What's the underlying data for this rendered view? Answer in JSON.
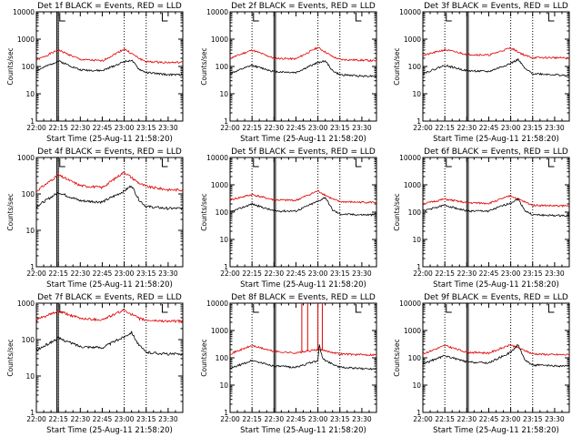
{
  "colors": {
    "events": "#000000",
    "lld": "#e00000",
    "axes": "#000000"
  },
  "chart_data": [
    {
      "type": "line",
      "title": "Det 1f BLACK = Events, RED = LLD",
      "xlabel": "Start Time (25-Aug-11 21:58:20)",
      "ylabel": "Counts/sec",
      "yscale": "log",
      "ylim": [
        1,
        10000
      ],
      "yticks": [
        "1",
        "10",
        "100",
        "1000",
        "10000"
      ],
      "xticks": [
        "22:00",
        "22:15",
        "22:30",
        "22:45",
        "23:00",
        "23:15",
        "23:30"
      ],
      "x_units": "minutes after 22:00",
      "dotted_x": [
        15,
        60,
        75
      ],
      "solid_x": [
        14,
        15
      ],
      "flag_x": [
        16,
        86
      ],
      "series": [
        {
          "name": "LLD",
          "x": [
            0,
            15,
            30,
            45,
            60,
            70,
            75,
            90,
            100
          ],
          "y": [
            170,
            400,
            180,
            160,
            440,
            200,
            150,
            140,
            140
          ]
        },
        {
          "name": "Events",
          "x": [
            0,
            15,
            30,
            45,
            60,
            65,
            70,
            75,
            90,
            100
          ],
          "y": [
            70,
            160,
            75,
            70,
            150,
            170,
            80,
            60,
            50,
            50
          ]
        }
      ]
    },
    {
      "type": "line",
      "title": "Det 2f BLACK = Events, RED = LLD",
      "xlabel": "Start Time (25-Aug-11 21:58:20)",
      "ylabel": "Counts/sec",
      "yscale": "log",
      "ylim": [
        1,
        10000
      ],
      "yticks": [
        "1",
        "10",
        "100",
        "1000",
        "10000"
      ],
      "xticks": [
        "22:00",
        "22:15",
        "22:30",
        "22:45",
        "23:00",
        "23:15",
        "23:30"
      ],
      "x_units": "minutes after 22:00",
      "dotted_x": [
        15,
        60,
        75
      ],
      "solid_x": [
        30,
        31
      ],
      "flag_x": [
        16,
        86
      ],
      "series": [
        {
          "name": "LLD",
          "x": [
            0,
            15,
            30,
            45,
            60,
            70,
            75,
            90,
            100
          ],
          "y": [
            200,
            400,
            200,
            190,
            500,
            230,
            180,
            170,
            160
          ]
        },
        {
          "name": "Events",
          "x": [
            0,
            15,
            30,
            45,
            60,
            65,
            70,
            75,
            90,
            100
          ],
          "y": [
            55,
            110,
            65,
            60,
            140,
            160,
            70,
            50,
            45,
            45
          ]
        }
      ]
    },
    {
      "type": "line",
      "title": "Det 3f BLACK = Events, RED = LLD",
      "xlabel": "Start Time (25-Aug-11 21:58:20)",
      "ylabel": "Counts/sec",
      "yscale": "log",
      "ylim": [
        1,
        10000
      ],
      "yticks": [
        "1",
        "10",
        "100",
        "1000",
        "10000"
      ],
      "xticks": [
        "22:00",
        "22:15",
        "22:30",
        "22:45",
        "23:00",
        "23:15",
        "23:30"
      ],
      "x_units": "minutes after 22:00",
      "dotted_x": [
        15,
        60,
        75
      ],
      "solid_x": [
        30,
        31
      ],
      "flag_x": [
        16,
        86
      ],
      "series": [
        {
          "name": "LLD",
          "x": [
            0,
            15,
            30,
            45,
            60,
            70,
            75,
            90,
            100
          ],
          "y": [
            250,
            410,
            280,
            260,
            480,
            250,
            210,
            210,
            200
          ]
        },
        {
          "name": "Events",
          "x": [
            0,
            15,
            30,
            45,
            60,
            65,
            70,
            75,
            90,
            100
          ],
          "y": [
            55,
            110,
            70,
            65,
            130,
            180,
            80,
            55,
            50,
            45
          ]
        }
      ]
    },
    {
      "type": "line",
      "title": "Det 4f BLACK = Events, RED = LLD",
      "xlabel": "Start Time (25-Aug-11 21:58:20)",
      "ylabel": "Counts/sec",
      "yscale": "log",
      "ylim": [
        1,
        1000
      ],
      "yticks": [
        "1",
        "10",
        "100",
        "1000"
      ],
      "xticks": [
        "22:00",
        "22:15",
        "22:30",
        "22:45",
        "23:00",
        "23:15",
        "23:30"
      ],
      "x_units": "minutes after 22:00",
      "dotted_x": [
        15,
        60,
        75
      ],
      "solid_x": [
        14,
        15
      ],
      "flag_x": [
        16,
        86
      ],
      "series": [
        {
          "name": "LLD",
          "x": [
            0,
            15,
            30,
            45,
            60,
            70,
            75,
            90,
            100
          ],
          "y": [
            120,
            330,
            170,
            150,
            400,
            200,
            160,
            130,
            130
          ]
        },
        {
          "name": "Events",
          "x": [
            0,
            15,
            30,
            45,
            60,
            65,
            70,
            75,
            90,
            100
          ],
          "y": [
            45,
            110,
            65,
            60,
            120,
            170,
            70,
            45,
            40,
            40
          ]
        }
      ]
    },
    {
      "type": "line",
      "title": "Det 5f BLACK = Events, RED = LLD",
      "xlabel": "Start Time (25-Aug-11 21:58:20)",
      "ylabel": "Counts/sec",
      "yscale": "log",
      "ylim": [
        1,
        10000
      ],
      "yticks": [
        "1",
        "10",
        "100",
        "1000",
        "10000"
      ],
      "xticks": [
        "22:00",
        "22:15",
        "22:30",
        "22:45",
        "23:00",
        "23:15",
        "23:30"
      ],
      "x_units": "minutes after 22:00",
      "dotted_x": [
        15,
        60,
        75
      ],
      "solid_x": [
        30,
        31
      ],
      "flag_x": [
        16,
        86
      ],
      "series": [
        {
          "name": "LLD",
          "x": [
            0,
            15,
            30,
            45,
            60,
            70,
            75,
            90,
            100
          ],
          "y": [
            280,
            440,
            280,
            270,
            600,
            300,
            240,
            230,
            230
          ]
        },
        {
          "name": "Events",
          "x": [
            0,
            15,
            30,
            45,
            60,
            65,
            70,
            75,
            90,
            100
          ],
          "y": [
            100,
            200,
            110,
            110,
            250,
            350,
            120,
            85,
            80,
            80
          ]
        }
      ]
    },
    {
      "type": "line",
      "title": "Det 6f BLACK = Events, RED = LLD",
      "xlabel": "Start Time (25-Aug-11 21:58:20)",
      "ylabel": "Counts/sec",
      "yscale": "log",
      "ylim": [
        1,
        10000
      ],
      "yticks": [
        "1",
        "10",
        "100",
        "1000",
        "10000"
      ],
      "xticks": [
        "22:00",
        "22:15",
        "22:30",
        "22:45",
        "23:00",
        "23:15",
        "23:30"
      ],
      "x_units": "minutes after 22:00",
      "dotted_x": [
        15,
        60,
        75
      ],
      "solid_x": [
        30,
        31
      ],
      "flag_x": [
        16,
        86
      ],
      "series": [
        {
          "name": "LLD",
          "x": [
            0,
            15,
            30,
            45,
            60,
            70,
            75,
            90,
            100
          ],
          "y": [
            200,
            300,
            220,
            210,
            400,
            230,
            180,
            170,
            170
          ]
        },
        {
          "name": "Events",
          "x": [
            0,
            15,
            30,
            45,
            60,
            65,
            70,
            75,
            90,
            100
          ],
          "y": [
            110,
            180,
            110,
            110,
            220,
            300,
            110,
            80,
            75,
            75
          ]
        }
      ]
    },
    {
      "type": "line",
      "title": "Det 7f BLACK = Events, RED = LLD",
      "xlabel": "Start Time (25-Aug-11 21:58:20)",
      "ylabel": "Counts/sec",
      "yscale": "log",
      "ylim": [
        1,
        1000
      ],
      "yticks": [
        "1",
        "10",
        "100",
        "1000"
      ],
      "xticks": [
        "22:00",
        "22:15",
        "22:30",
        "22:45",
        "23:00",
        "23:15",
        "23:30"
      ],
      "x_units": "minutes after 22:00",
      "dotted_x": [
        15,
        60,
        75
      ],
      "solid_x": [
        14,
        15
      ],
      "flag_x": [
        16,
        86
      ],
      "series": [
        {
          "name": "LLD",
          "x": [
            0,
            15,
            30,
            45,
            60,
            70,
            75,
            90,
            100
          ],
          "y": [
            350,
            600,
            380,
            350,
            650,
            380,
            340,
            320,
            320
          ]
        },
        {
          "name": "Events",
          "x": [
            0,
            15,
            30,
            45,
            60,
            65,
            70,
            75,
            90,
            100
          ],
          "y": [
            50,
            110,
            65,
            60,
            120,
            160,
            70,
            45,
            40,
            40
          ]
        }
      ]
    },
    {
      "type": "line",
      "title": "Det 8f BLACK = Events, RED = LLD",
      "xlabel": "Start Time (25-Aug-11 21:58:20)",
      "ylabel": "Counts/sec",
      "yscale": "log",
      "ylim": [
        1,
        10000
      ],
      "yticks": [
        "1",
        "10",
        "100",
        "1000",
        "10000"
      ],
      "xticks": [
        "22:00",
        "22:15",
        "22:30",
        "22:45",
        "23:00",
        "23:15",
        "23:30"
      ],
      "x_units": "minutes after 22:00",
      "dotted_x": [
        15,
        60,
        75
      ],
      "solid_x": [
        30,
        31
      ],
      "flag_x": [
        16,
        86
      ],
      "spikes": {
        "LLD": [
          49,
          53,
          60,
          63
        ],
        "Events": []
      },
      "series": [
        {
          "name": "LLD",
          "x": [
            0,
            15,
            30,
            45,
            60,
            70,
            75,
            90,
            100
          ],
          "y": [
            140,
            280,
            170,
            150,
            200,
            160,
            140,
            130,
            130
          ]
        },
        {
          "name": "Events",
          "x": [
            0,
            15,
            30,
            45,
            60,
            61,
            63,
            65,
            70,
            75,
            90,
            100
          ],
          "y": [
            40,
            80,
            50,
            45,
            80,
            300,
            100,
            80,
            60,
            45,
            40,
            40
          ]
        }
      ]
    },
    {
      "type": "line",
      "title": "Det 9f BLACK = Events, RED = LLD",
      "xlabel": "Start Time (25-Aug-11 21:58:20)",
      "ylabel": "Counts/sec",
      "yscale": "log",
      "ylim": [
        1,
        10000
      ],
      "yticks": [
        "1",
        "10",
        "100",
        "1000",
        "10000"
      ],
      "xticks": [
        "22:00",
        "22:15",
        "22:30",
        "22:45",
        "23:00",
        "23:15",
        "23:30"
      ],
      "x_units": "minutes after 22:00",
      "dotted_x": [
        15,
        60,
        75
      ],
      "solid_x": [
        30,
        31
      ],
      "flag_x": [
        16,
        86
      ],
      "series": [
        {
          "name": "LLD",
          "x": [
            0,
            15,
            30,
            45,
            60,
            70,
            75,
            90,
            100
          ],
          "y": [
            140,
            280,
            160,
            150,
            300,
            180,
            140,
            130,
            130
          ]
        },
        {
          "name": "Events",
          "x": [
            0,
            15,
            30,
            45,
            60,
            65,
            70,
            75,
            90,
            100
          ],
          "y": [
            60,
            120,
            70,
            65,
            160,
            300,
            80,
            55,
            50,
            50
          ]
        }
      ]
    }
  ]
}
